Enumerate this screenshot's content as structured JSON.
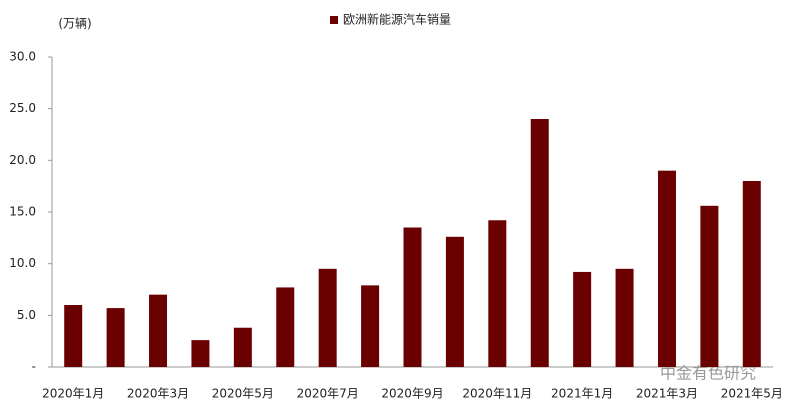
{
  "chart_data": {
    "type": "bar",
    "legend_label": "欧洲新能源汽车销量",
    "unit_label": "(万辆)",
    "watermark": "中金有色研究",
    "categories": [
      "2020年1月",
      null,
      "2020年3月",
      null,
      "2020年5月",
      null,
      "2020年7月",
      null,
      "2020年9月",
      null,
      "2020年11月",
      null,
      "2021年1月",
      null,
      "2021年3月",
      null,
      "2021年5月"
    ],
    "values": [
      6.0,
      5.7,
      7.0,
      2.6,
      3.8,
      7.7,
      9.5,
      7.9,
      13.5,
      12.6,
      14.2,
      24.0,
      9.2,
      9.5,
      19.0,
      15.6,
      18.0
    ],
    "color": "#6b0000",
    "ylim": [
      0,
      30
    ],
    "yticks": [
      {
        "value": 0,
        "label": "-"
      },
      {
        "value": 5,
        "label": "5.0"
      },
      {
        "value": 10,
        "label": "10.0"
      },
      {
        "value": 15,
        "label": "15.0"
      },
      {
        "value": 20,
        "label": "20.0"
      },
      {
        "value": 25,
        "label": "25.0"
      },
      {
        "value": 30,
        "label": "30.0"
      }
    ],
    "grid": false
  }
}
